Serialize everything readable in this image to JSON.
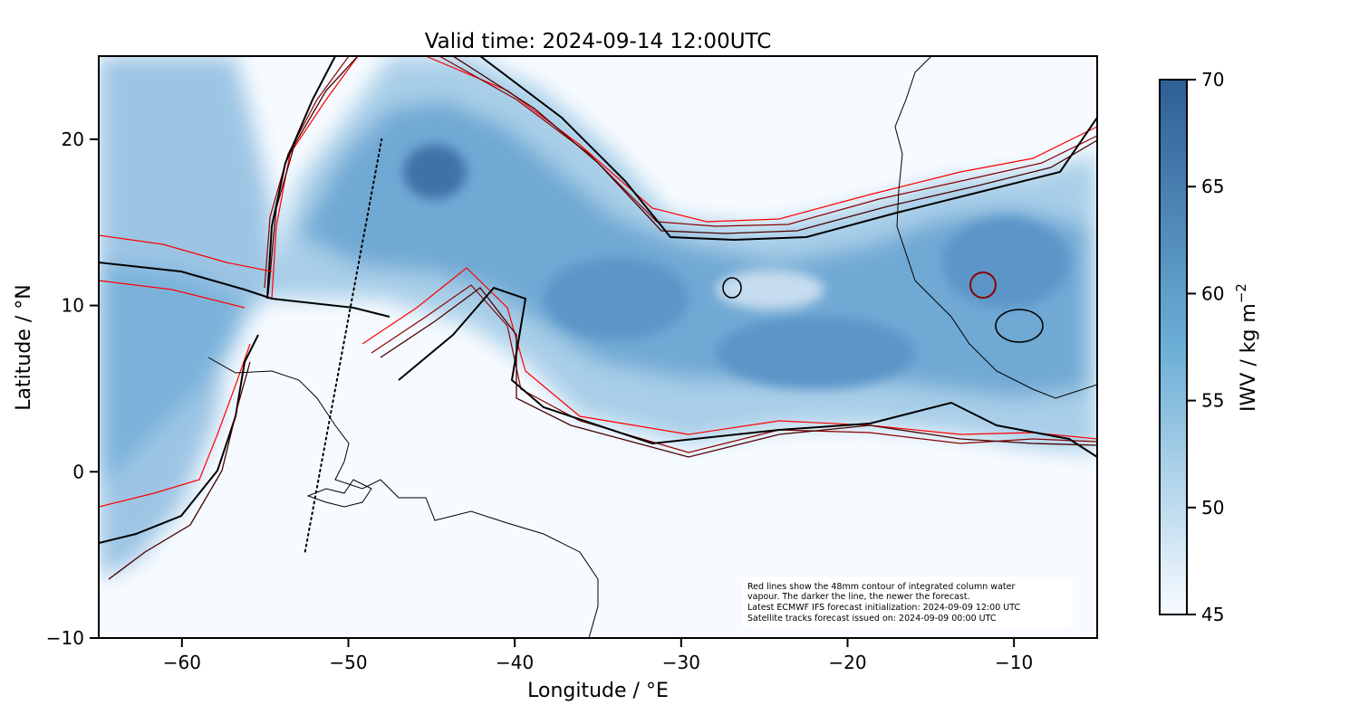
{
  "title": "Valid time: 2024-09-14 12:00UTC",
  "x_axis": {
    "label": "Longitude / °E",
    "range": [
      -65,
      -5
    ],
    "ticks": [
      -60,
      -50,
      -40,
      -30,
      -20,
      -10
    ],
    "tick_labels": [
      "−60",
      "−50",
      "−40",
      "−30",
      "−20",
      "−10"
    ]
  },
  "y_axis": {
    "label": "Latitude / °N",
    "range": [
      -10,
      25
    ],
    "ticks": [
      -10,
      0,
      10,
      20
    ],
    "tick_labels": [
      "−10",
      "0",
      "10",
      "20"
    ]
  },
  "colorbar": {
    "label_main": "IWV / kg m",
    "label_exp": "−2",
    "range": [
      45,
      70
    ],
    "ticks": [
      45,
      50,
      55,
      60,
      65,
      70
    ],
    "tick_labels": [
      "45",
      "50",
      "55",
      "60",
      "65",
      "70"
    ],
    "color_low": "#f7fbff",
    "color_mid": "#6baed6",
    "color_high": "#2f5f95"
  },
  "legend_note": {
    "lines": [
      "Red lines show the 48mm contour of integrated column water",
      "vapour. The darker the line, the newer the forecast.",
      "Latest ECMWF IFS forecast initialization: 2024-09-09 12:00 UTC",
      "Satellite tracks forecast issued on: 2024-09-09 00:00 UTC"
    ],
    "placement": "bottom-right"
  },
  "satellite_track": {
    "style": "dotted",
    "points_lon_lat": [
      [
        -52.6,
        -4.8
      ],
      [
        -48.0,
        20.0
      ]
    ]
  },
  "contour_colors": {
    "newest": "#000000",
    "newer": "#4a0000",
    "older": "#8b0000",
    "oldest": "#ff0000"
  },
  "coastline_color": "#000000"
}
